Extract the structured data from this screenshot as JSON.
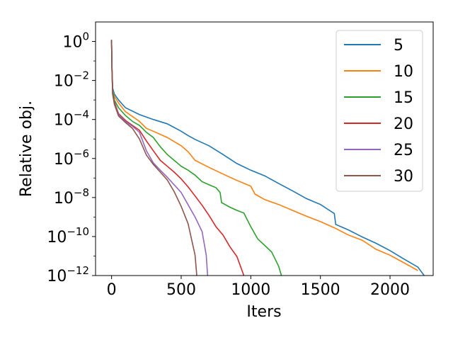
{
  "chart_data": {
    "type": "line",
    "xlabel": "Iters",
    "ylabel": "Relative obj.",
    "xlim": [
      -115,
      2310
    ],
    "ylim": [
      1e-12,
      10
    ],
    "yscale": "log",
    "grid": false,
    "legend": "top-right",
    "x_ticks": [
      0,
      500,
      1000,
      1500,
      2000
    ],
    "x_tick_labels": [
      "0",
      "500",
      "1000",
      "1500",
      "2000"
    ],
    "y_ticks": [
      {
        "value": 1,
        "base": "10",
        "exp": "0"
      },
      {
        "value": 0.01,
        "base": "10",
        "exp": "−2"
      },
      {
        "value": 0.0001,
        "base": "10",
        "exp": "−4"
      },
      {
        "value": 1e-06,
        "base": "10",
        "exp": "−6"
      },
      {
        "value": 1e-08,
        "base": "10",
        "exp": "−8"
      },
      {
        "value": 1e-10,
        "base": "10",
        "exp": "−10"
      },
      {
        "value": 1e-12,
        "base": "10",
        "exp": "−12"
      }
    ],
    "series": [
      {
        "name": "5",
        "color": "#1f77b4",
        "points": [
          [
            0,
            1.2
          ],
          [
            3,
            0.05
          ],
          [
            8,
            0.004
          ],
          [
            20,
            0.002
          ],
          [
            50,
            0.001
          ],
          [
            100,
            0.0004
          ],
          [
            200,
            0.00018
          ],
          [
            300,
            0.0001
          ],
          [
            400,
            6e-05
          ],
          [
            500,
            2.5e-05
          ],
          [
            550,
            1.5e-05
          ],
          [
            600,
            9.5e-06
          ],
          [
            700,
            4.5e-06
          ],
          [
            800,
            1.6e-06
          ],
          [
            900,
            5.5e-07
          ],
          [
            1000,
            2.5e-07
          ],
          [
            1100,
            1.3e-07
          ],
          [
            1200,
            5.2e-08
          ],
          [
            1300,
            2.2e-08
          ],
          [
            1400,
            8.8e-09
          ],
          [
            1500,
            4.4e-09
          ],
          [
            1600,
            1.5e-09
          ],
          [
            1610,
            4.2e-10
          ],
          [
            1700,
            2.2e-10
          ],
          [
            1800,
            9.5e-11
          ],
          [
            1900,
            4.5e-11
          ],
          [
            2000,
            1.9e-11
          ],
          [
            2100,
            7e-12
          ],
          [
            2200,
            2.7e-12
          ],
          [
            2250,
            9e-13
          ]
        ]
      },
      {
        "name": "10",
        "color": "#ff7f0e",
        "points": [
          [
            0,
            1.2
          ],
          [
            3,
            0.05
          ],
          [
            8,
            0.003
          ],
          [
            20,
            0.0015
          ],
          [
            50,
            0.0007
          ],
          [
            100,
            0.00025
          ],
          [
            200,
            8e-05
          ],
          [
            250,
            3.5e-05
          ],
          [
            300,
            2.5e-05
          ],
          [
            400,
            1.2e-05
          ],
          [
            500,
            4.5e-06
          ],
          [
            550,
            2.2e-06
          ],
          [
            600,
            8e-07
          ],
          [
            700,
            3.5e-07
          ],
          [
            800,
            1.6e-07
          ],
          [
            900,
            7.5e-08
          ],
          [
            1000,
            3.8e-08
          ],
          [
            1030,
            1.5e-08
          ],
          [
            1100,
            7.8e-09
          ],
          [
            1200,
            4.4e-09
          ],
          [
            1300,
            2.2e-09
          ],
          [
            1400,
            1.1e-09
          ],
          [
            1500,
            5.8e-10
          ],
          [
            1600,
            2.8e-10
          ],
          [
            1700,
            1.2e-10
          ],
          [
            1800,
            6.5e-11
          ],
          [
            1900,
            2.2e-11
          ],
          [
            2000,
            1.1e-11
          ],
          [
            2100,
            4.5e-12
          ],
          [
            2200,
            1.8e-12
          ]
        ]
      },
      {
        "name": "15",
        "color": "#2ca02c",
        "points": [
          [
            0,
            1.2
          ],
          [
            3,
            0.04
          ],
          [
            8,
            0.003
          ],
          [
            20,
            0.001
          ],
          [
            50,
            0.0004
          ],
          [
            100,
            0.00016
          ],
          [
            150,
            8e-05
          ],
          [
            200,
            5e-05
          ],
          [
            250,
            2.2e-05
          ],
          [
            300,
            1.2e-05
          ],
          [
            350,
            4e-06
          ],
          [
            400,
            1.6e-06
          ],
          [
            450,
            8e-07
          ],
          [
            500,
            4e-07
          ],
          [
            550,
            2.5e-07
          ],
          [
            600,
            1.4e-07
          ],
          [
            650,
            6.5e-08
          ],
          [
            700,
            4.5e-08
          ],
          [
            750,
            3.2e-08
          ],
          [
            780,
            1.8e-08
          ],
          [
            790,
            5.5e-09
          ],
          [
            850,
            3.2e-09
          ],
          [
            900,
            2.2e-09
          ],
          [
            950,
            1.6e-09
          ],
          [
            1000,
            3.2e-10
          ],
          [
            1050,
            7.5e-11
          ],
          [
            1100,
            3.5e-11
          ],
          [
            1150,
            1.6e-11
          ],
          [
            1200,
            3e-12
          ],
          [
            1220,
            1e-12
          ]
        ]
      },
      {
        "name": "20",
        "color": "#d62728",
        "points": [
          [
            0,
            1.2
          ],
          [
            3,
            0.04
          ],
          [
            8,
            0.002
          ],
          [
            20,
            0.0008
          ],
          [
            50,
            0.0002
          ],
          [
            100,
            9e-05
          ],
          [
            150,
            5e-05
          ],
          [
            200,
            2.8e-05
          ],
          [
            250,
            8e-06
          ],
          [
            300,
            2.5e-06
          ],
          [
            350,
            8e-07
          ],
          [
            400,
            4e-07
          ],
          [
            450,
            2e-07
          ],
          [
            500,
            9e-08
          ],
          [
            550,
            3.5e-08
          ],
          [
            600,
            1.2e-08
          ],
          [
            650,
            4e-09
          ],
          [
            700,
            1.2e-09
          ],
          [
            750,
            3.2e-10
          ],
          [
            800,
            1.2e-10
          ],
          [
            850,
            3e-11
          ],
          [
            900,
            9.5e-12
          ],
          [
            950,
            1e-12
          ]
        ]
      },
      {
        "name": "25",
        "color": "#9467bd",
        "points": [
          [
            0,
            1.2
          ],
          [
            3,
            0.03
          ],
          [
            8,
            0.002
          ],
          [
            20,
            0.0007
          ],
          [
            50,
            0.00018
          ],
          [
            100,
            8e-05
          ],
          [
            150,
            4.5e-05
          ],
          [
            200,
            2.2e-05
          ],
          [
            250,
            2.5e-06
          ],
          [
            300,
            6e-07
          ],
          [
            350,
            2.5e-07
          ],
          [
            400,
            1.1e-07
          ],
          [
            450,
            4.5e-08
          ],
          [
            500,
            1.8e-08
          ],
          [
            550,
            4.2e-09
          ],
          [
            600,
            1e-09
          ],
          [
            650,
            1.8e-10
          ],
          [
            680,
            1.1e-11
          ],
          [
            690,
            1e-12
          ]
        ]
      },
      {
        "name": "30",
        "color": "#8c564b",
        "points": [
          [
            0,
            1.2
          ],
          [
            3,
            0.03
          ],
          [
            8,
            0.002
          ],
          [
            20,
            0.0006
          ],
          [
            50,
            0.00015
          ],
          [
            100,
            7e-05
          ],
          [
            150,
            3.5e-05
          ],
          [
            200,
            1e-05
          ],
          [
            250,
            1.5e-06
          ],
          [
            300,
            5e-07
          ],
          [
            350,
            2e-07
          ],
          [
            400,
            8e-08
          ],
          [
            450,
            2e-08
          ],
          [
            500,
            3.5e-09
          ],
          [
            550,
            4.5e-10
          ],
          [
            600,
            1.1e-11
          ],
          [
            612,
            1e-12
          ]
        ]
      }
    ]
  }
}
